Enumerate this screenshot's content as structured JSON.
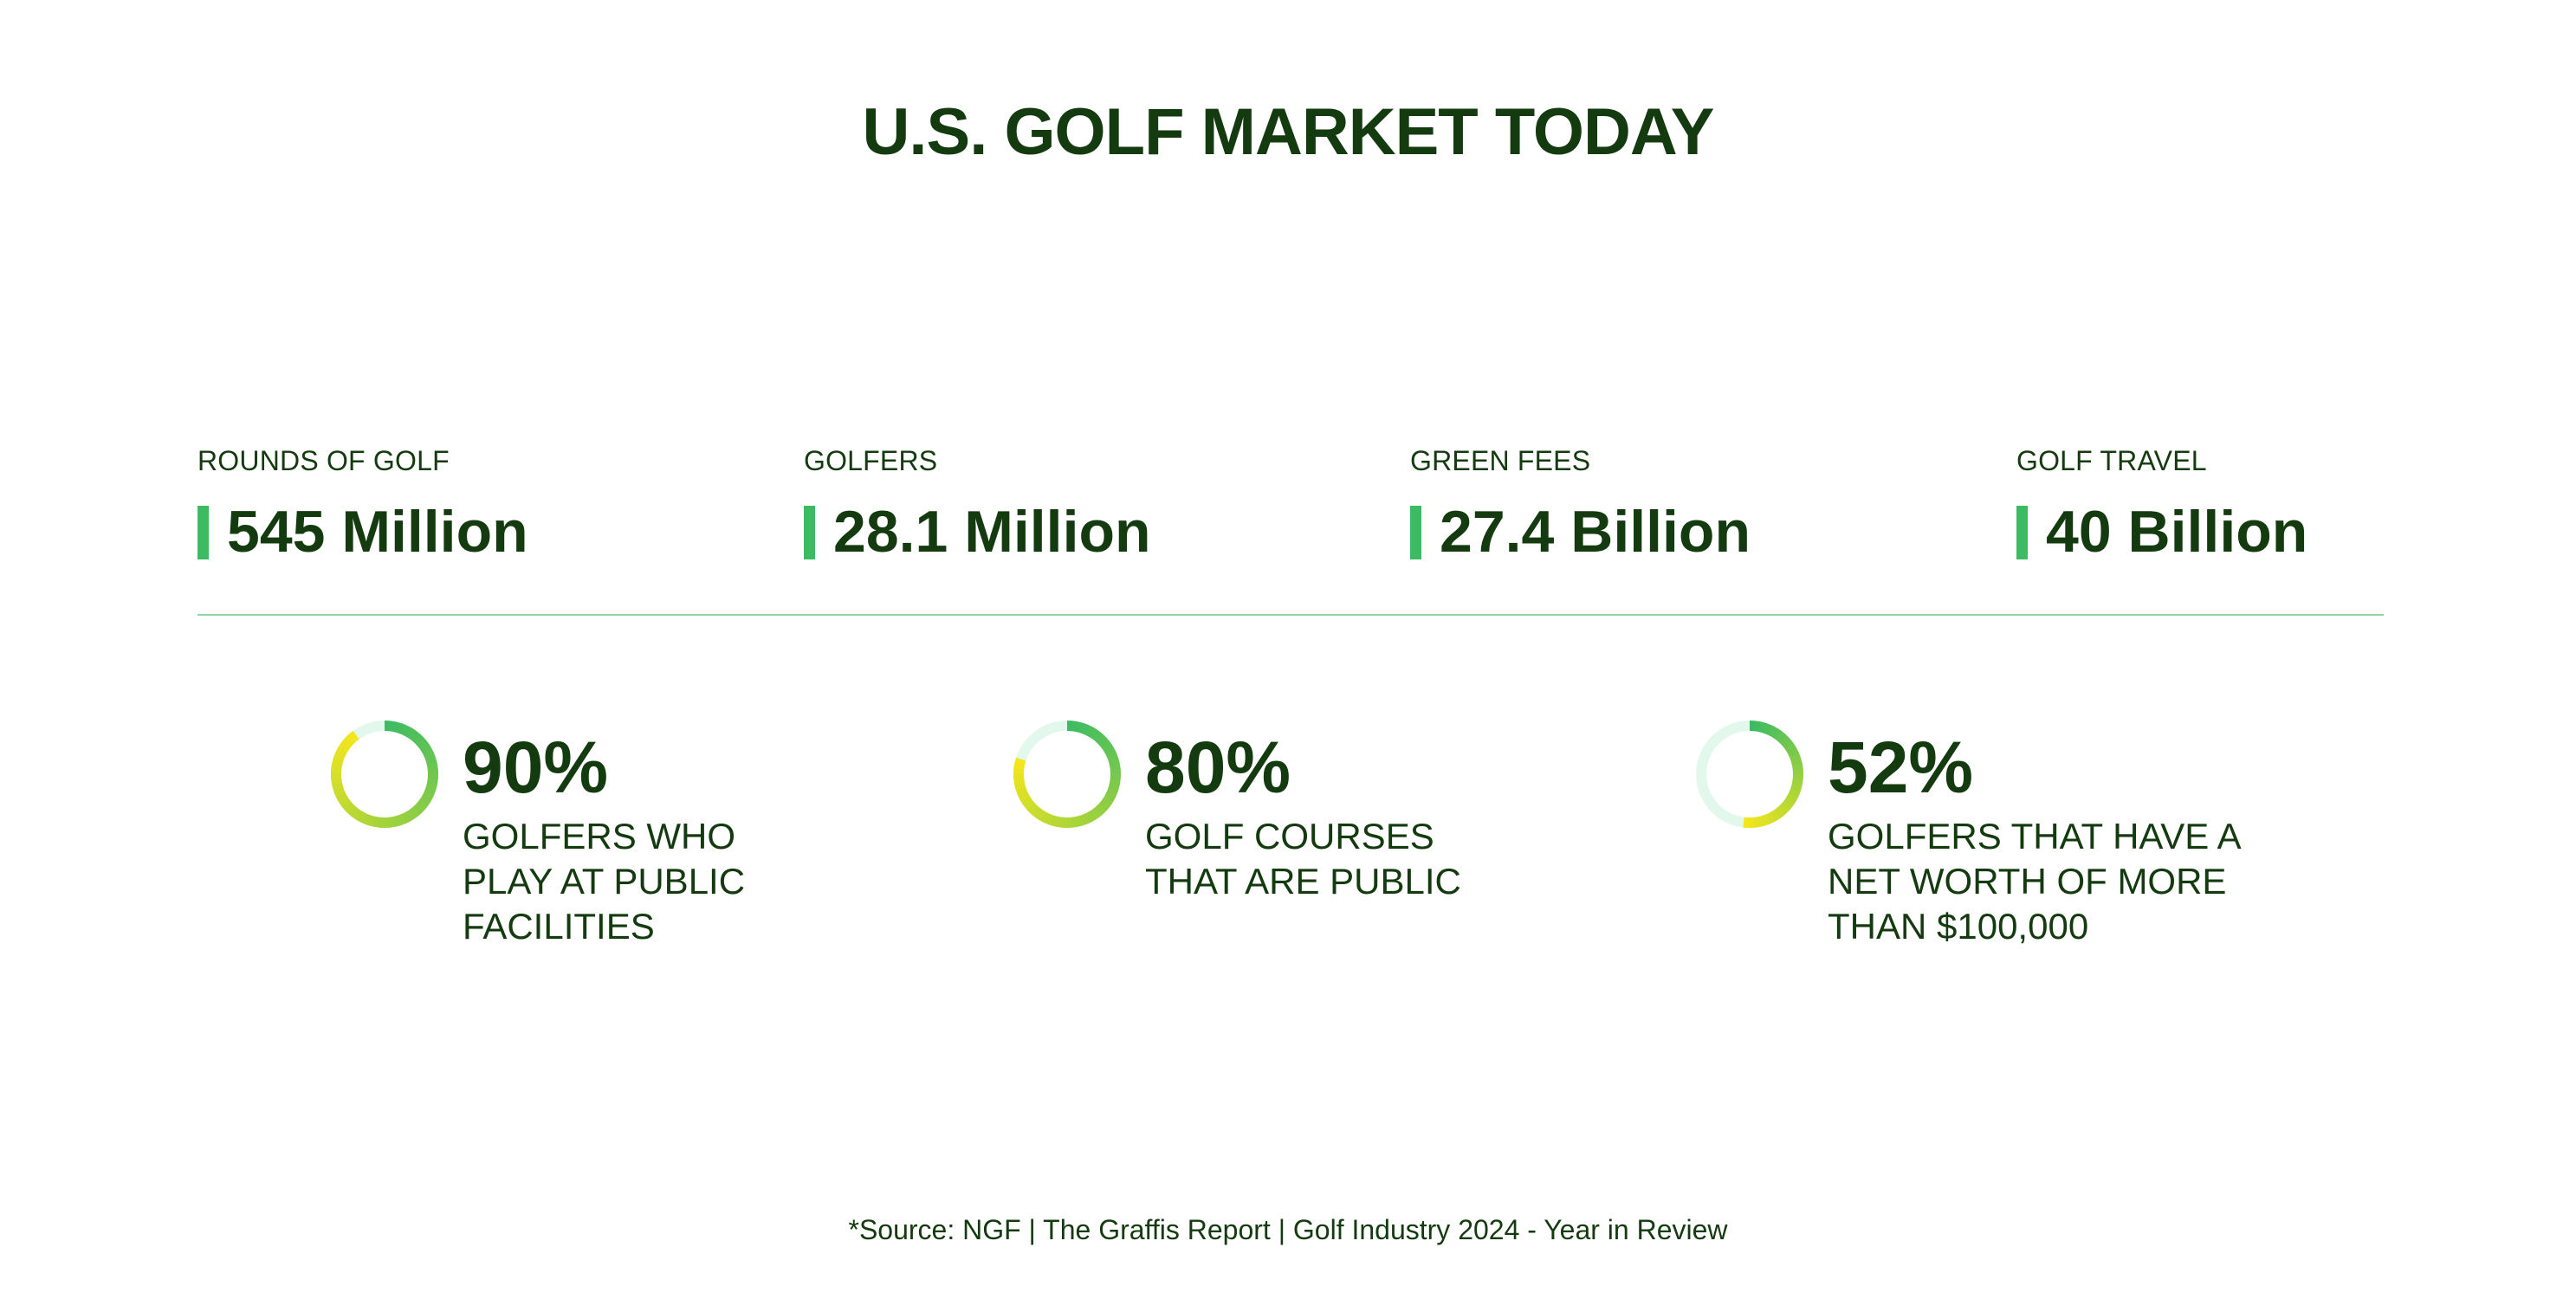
{
  "title": "U.S. GOLF MARKET TODAY",
  "stats": [
    {
      "label": "ROUNDS OF GOLF",
      "value": "545 Million"
    },
    {
      "label": "GOLFERS",
      "value": "28.1 Million"
    },
    {
      "label": "GREEN FEES",
      "value": "27.4 Billion"
    },
    {
      "label": "GOLF TRAVEL",
      "value": "40 Billion"
    }
  ],
  "percentages": [
    {
      "value": "90%",
      "fraction": 0.9,
      "line1": "GOLFERS WHO",
      "line2": "PLAY AT PUBLIC",
      "line3": "FACILITIES"
    },
    {
      "value": "80%",
      "fraction": 0.8,
      "line1": "GOLF COURSES",
      "line2": "THAT ARE PUBLIC",
      "line3": ""
    },
    {
      "value": "52%",
      "fraction": 0.52,
      "line1": "GOLFERS THAT HAVE A",
      "line2": "NET WORTH OF MORE",
      "line3": "THAN $100,000"
    }
  ],
  "source": "*Source: NGF | The Graffis Report | Golf Industry 2024 - Year in Review",
  "colors": {
    "text": "#143a0f",
    "accent_bar": "#3dbb62",
    "divider": "#8fd8a2",
    "ring_track": "#e3f8ec",
    "ring_start": "#3dbb62",
    "ring_end": "#f4e61d"
  }
}
